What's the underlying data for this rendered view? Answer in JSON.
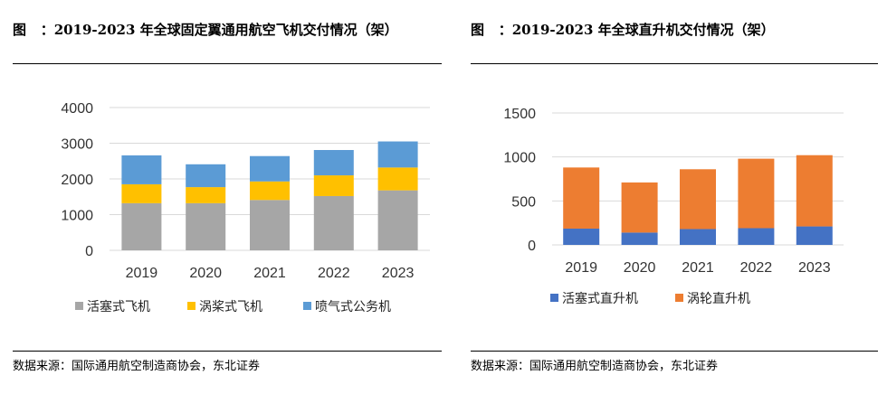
{
  "left": {
    "title_prefix": "图",
    "title": "：2019-2023 年全球固定翼通用航空飞机交付情况（架）",
    "source": "数据来源：国际通用航空制造商协会，东北证券"
  },
  "right": {
    "title_prefix": "图",
    "title": "：2019-2023 年全球直升机交付情况（架）",
    "source": "数据来源：国际通用航空制造商协会，东北证券"
  },
  "colors": {
    "piston": "#a6a6a6",
    "turboprop": "#ffc000",
    "business_jet": "#5b9bd5",
    "piston_heli": "#4472c4",
    "turbine_heli": "#ed7d31",
    "grid": "#d9d9d9"
  },
  "chart_data": [
    {
      "type": "bar",
      "stacked": true,
      "title": "2019-2023 年全球固定翼通用航空飞机交付情况（架）",
      "categories": [
        "2019",
        "2020",
        "2021",
        "2022",
        "2023"
      ],
      "ylim": [
        0,
        4000
      ],
      "yticks": [
        "0",
        "1000",
        "2000",
        "3000",
        "4000"
      ],
      "legend_position": "bottom",
      "series": [
        {
          "name": "活塞式飞机",
          "color_key": "piston",
          "values": [
            1320,
            1320,
            1410,
            1520,
            1680
          ]
        },
        {
          "name": "涡桨式飞机",
          "color_key": "turboprop",
          "values": [
            530,
            450,
            520,
            580,
            640
          ]
        },
        {
          "name": "喷气式公务机",
          "color_key": "business_jet",
          "values": [
            810,
            640,
            710,
            710,
            730
          ]
        }
      ]
    },
    {
      "type": "bar",
      "stacked": true,
      "title": "2019-2023 年全球直升机交付情况（架）",
      "categories": [
        "2019",
        "2020",
        "2021",
        "2022",
        "2023"
      ],
      "ylim": [
        0,
        1500
      ],
      "yticks": [
        "0",
        "500",
        "1000",
        "1500"
      ],
      "legend_position": "bottom",
      "series": [
        {
          "name": "活塞式直升机",
          "color_key": "piston_heli",
          "values": [
            185,
            140,
            180,
            190,
            210
          ]
        },
        {
          "name": "涡轮直升机",
          "color_key": "turbine_heli",
          "values": [
            695,
            570,
            680,
            790,
            810
          ]
        }
      ]
    }
  ]
}
